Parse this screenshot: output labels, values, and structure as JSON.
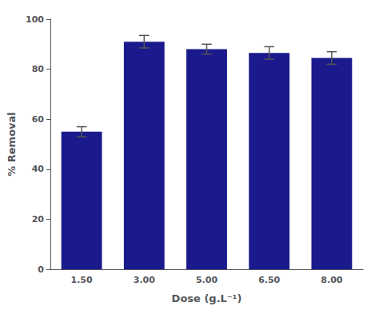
{
  "chart_data": {
    "type": "bar",
    "xlabel": "Dose (g.L⁻¹)",
    "ylabel": "% Removal",
    "categories": [
      "1.50",
      "3.00",
      "5.00",
      "6.50",
      "8.00"
    ],
    "values": [
      55.0,
      91.0,
      88.0,
      86.5,
      84.5
    ],
    "errors": [
      2.0,
      2.5,
      2.0,
      2.5,
      2.5
    ],
    "color": "#1a1a8c",
    "ylim": [
      0,
      100
    ],
    "yticks": [
      0,
      20,
      40,
      60,
      80,
      100
    ],
    "grid": false
  }
}
